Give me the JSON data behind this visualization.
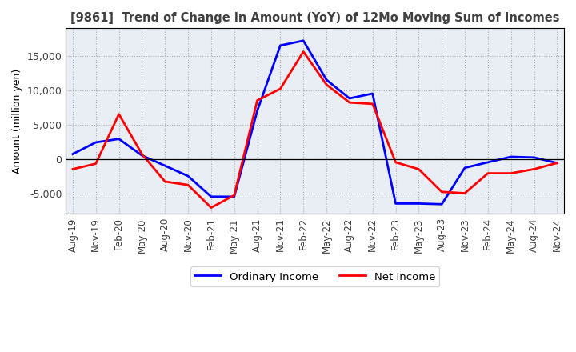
{
  "title": "[9861]  Trend of Change in Amount (YoY) of 12Mo Moving Sum of Incomes",
  "ylabel": "Amount (million yen)",
  "x_labels": [
    "Aug-19",
    "Nov-19",
    "Feb-20",
    "May-20",
    "Aug-20",
    "Nov-20",
    "Feb-21",
    "May-21",
    "Aug-21",
    "Nov-21",
    "Feb-22",
    "May-22",
    "Aug-22",
    "Nov-22",
    "Feb-23",
    "May-23",
    "Aug-23",
    "Nov-23",
    "Feb-24",
    "May-24",
    "Aug-24",
    "Nov-24"
  ],
  "ordinary_income": [
    700,
    2400,
    2900,
    500,
    -1000,
    -2500,
    -5500,
    -5500,
    7000,
    16500,
    17200,
    11500,
    8800,
    9500,
    -6500,
    -6500,
    -6600,
    -1300,
    -500,
    300,
    200,
    -600
  ],
  "net_income": [
    -1500,
    -700,
    6500,
    700,
    -3300,
    -3800,
    -7100,
    -5300,
    8500,
    10200,
    15600,
    10800,
    8200,
    8000,
    -500,
    -1500,
    -4800,
    -5000,
    -2100,
    -2100,
    -1500,
    -600
  ],
  "ordinary_color": "#0000FF",
  "net_color": "#FF0000",
  "ylim": [
    -8000,
    19000
  ],
  "yticks": [
    -5000,
    0,
    5000,
    10000,
    15000
  ],
  "bg_color": "#FFFFFF",
  "plot_bg_color": "#E8EEF4",
  "grid_color": "#AAAAAA",
  "legend_labels": [
    "Ordinary Income",
    "Net Income"
  ],
  "title_color": "#404040"
}
